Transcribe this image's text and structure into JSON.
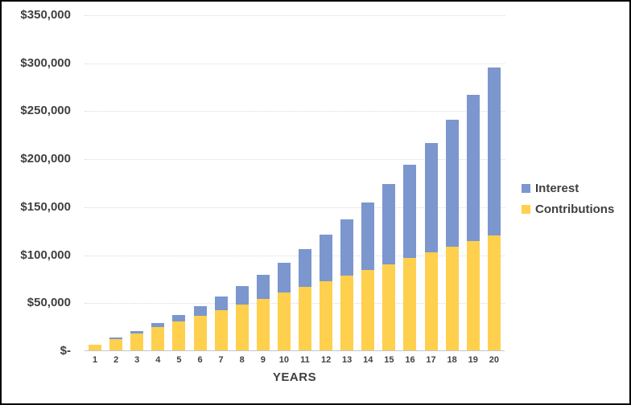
{
  "chart_data": {
    "type": "bar",
    "subtype": "stacked-vertical",
    "title": "",
    "xlabel": "YEARS",
    "ylabel": "",
    "categories": [
      "1",
      "2",
      "3",
      "4",
      "5",
      "6",
      "7",
      "8",
      "9",
      "10",
      "11",
      "12",
      "13",
      "14",
      "15",
      "16",
      "17",
      "18",
      "19",
      "20"
    ],
    "series": [
      {
        "name": "Interest",
        "color": "#7C96CE",
        "values": [
          225,
          1000,
          2300,
          4200,
          6700,
          10000,
          14100,
          18900,
          24700,
          31500,
          39300,
          48300,
          58500,
          70000,
          83000,
          97600,
          113900,
          132000,
          152200,
          174500
        ]
      },
      {
        "name": "Contributions",
        "color": "#FFD04D",
        "values": [
          6000,
          12000,
          18000,
          24000,
          30000,
          36000,
          42000,
          48000,
          54000,
          60000,
          66000,
          72000,
          78000,
          84000,
          90000,
          96000,
          102000,
          108000,
          114000,
          120000
        ]
      }
    ],
    "stack_order_bottom_to_top": [
      "Contributions",
      "Interest"
    ],
    "ylim": [
      0,
      350000
    ],
    "y_ticks": [
      {
        "label": "$350,000",
        "value": 350000
      },
      {
        "label": "$300,000",
        "value": 300000
      },
      {
        "label": "$250,000",
        "value": 250000
      },
      {
        "label": "$200,000",
        "value": 200000
      },
      {
        "label": "$150,000",
        "value": 150000
      },
      {
        "label": "$100,000",
        "value": 100000
      },
      {
        "label": "$50,000",
        "value": 50000
      },
      {
        "label": "$-",
        "value": 0
      }
    ],
    "grid": "horizontal-dotted",
    "legend_position": "right"
  },
  "colors": {
    "text": "#404040",
    "gridline": "#D9D9D9",
    "axis_line": "#C6C6C6",
    "background": "#FFFFFF",
    "frame_border": "#000000"
  }
}
